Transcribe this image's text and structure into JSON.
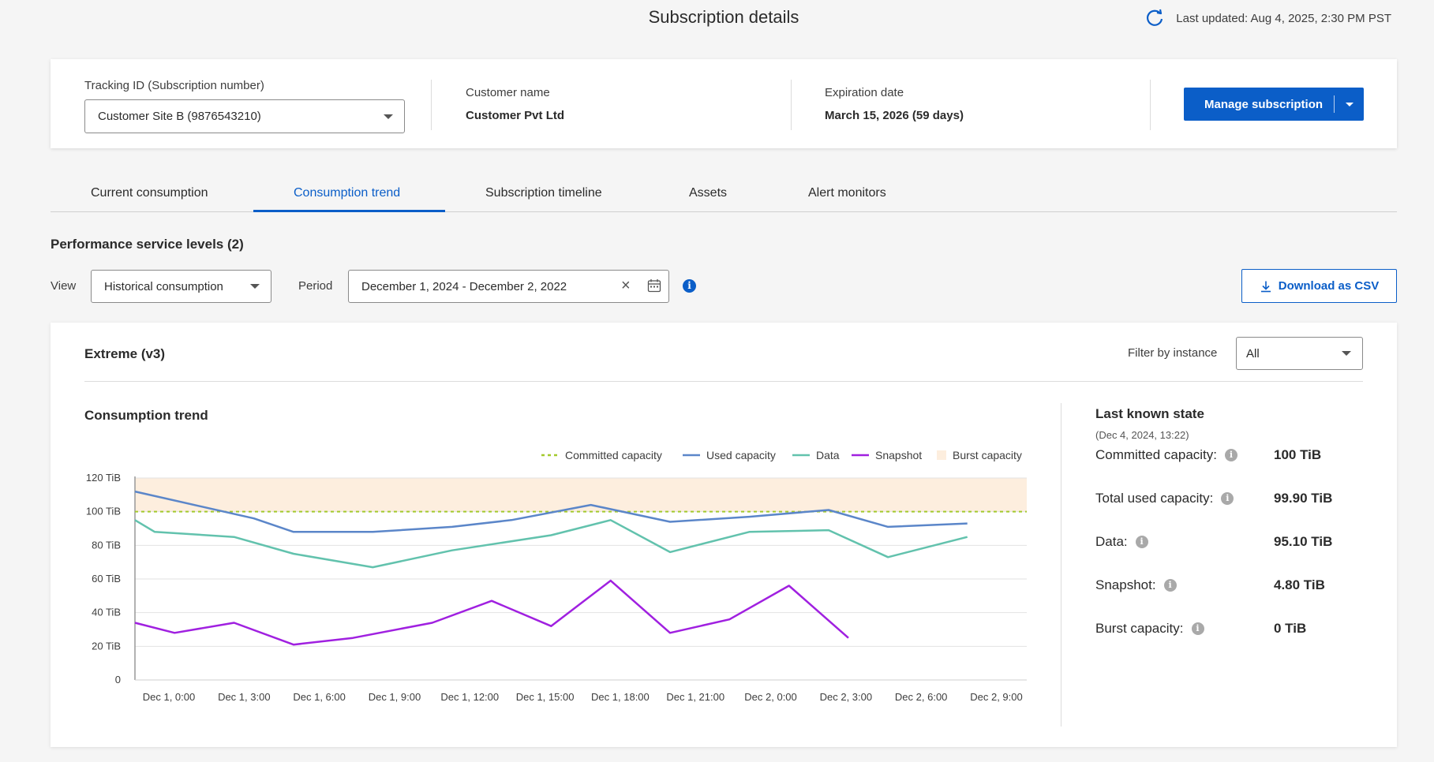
{
  "header": {
    "title": "Subscription details",
    "last_updated": "Last updated: Aug 4, 2025, 2:30 PM PST"
  },
  "subscription": {
    "tracking_label": "Tracking ID (Subscription number)",
    "tracking_value": "Customer Site B (9876543210)",
    "customer_label": "Customer name",
    "customer_value": "Customer Pvt Ltd",
    "expiration_label": "Expiration date",
    "expiration_value": "March 15, 2026 (59 days)",
    "manage_label": "Manage subscription"
  },
  "tabs": [
    {
      "label": "Current consumption"
    },
    {
      "label": "Consumption trend"
    },
    {
      "label": "Subscription timeline"
    },
    {
      "label": "Assets"
    },
    {
      "label": "Alert monitors"
    }
  ],
  "toolbar": {
    "section_title": "Performance service levels (2)",
    "view_label": "View",
    "view_value": "Historical consumption",
    "period_label": "Period",
    "period_value": "December 1, 2024 - December 2, 2022",
    "download_label": "Download as CSV"
  },
  "card": {
    "title": "Extreme (v3)",
    "filter_label": "Filter by instance",
    "filter_value": "All",
    "chart_title": "Consumption trend"
  },
  "state": {
    "title": "Last known state",
    "subtitle": "(Dec 4, 2024, 13:22)",
    "rows": [
      {
        "key": "Committed capacity:",
        "value": "100 TiB"
      },
      {
        "key": "Total used capacity:",
        "value": "99.90 TiB"
      },
      {
        "key": "Data:",
        "value": "95.10 TiB"
      },
      {
        "key": "Snapshot:",
        "value": "4.80 TiB"
      },
      {
        "key": "Burst capacity:",
        "value": "0 TiB"
      }
    ]
  },
  "colors": {
    "accent": "#0b5ec8",
    "committed": "#a3c92c",
    "used": "#5b86c9",
    "data": "#62c2ad",
    "snapshot": "#a020e0",
    "burst": "#fdeede"
  },
  "chart_data": {
    "type": "line",
    "title": "Consumption trend",
    "categories": [
      "Dec 1, 0:00",
      "Dec 1, 3:00",
      "Dec 1, 6:00",
      "Dec 1, 9:00",
      "Dec 1, 12:00",
      "Dec 1, 15:00",
      "Dec 1, 18:00",
      "Dec 1, 21:00",
      "Dec 2, 0:00",
      "Dec 2, 3:00",
      "Dec 2, 6:00",
      "Dec 2, 9:00"
    ],
    "y_ticks": [
      "0",
      "20 TiB",
      "40 TiB",
      "60 TiB",
      "80 TiB",
      "100 TiB",
      "120 TiB"
    ],
    "ylim": [
      0,
      120
    ],
    "legend_position": "top-right",
    "committed_capacity": 100,
    "burst_band": [
      100,
      120
    ],
    "legend": [
      "Committed capacity",
      "Used capacity",
      "Data",
      "Snapshot",
      "Burst capacity"
    ],
    "x": [
      0,
      1.5,
      3,
      4.5,
      6,
      7.5,
      9,
      10.5,
      12,
      13.5,
      15,
      16.5,
      18,
      19.5,
      21,
      22.5,
      24,
      25.5,
      27,
      28.5,
      30,
      31.5,
      33,
      34.5,
      36,
      37.5
    ],
    "series": [
      {
        "name": "Used capacity",
        "points": [
          [
            0,
            112
          ],
          [
            6,
            96
          ],
          [
            8,
            88
          ],
          [
            12,
            88
          ],
          [
            16,
            91
          ],
          [
            19,
            95
          ],
          [
            23,
            104
          ],
          [
            27,
            94
          ],
          [
            31,
            97
          ],
          [
            35,
            101
          ],
          [
            38,
            91
          ],
          [
            42,
            93
          ]
        ]
      },
      {
        "name": "Data",
        "points": [
          [
            0,
            95
          ],
          [
            1,
            88
          ],
          [
            5,
            85
          ],
          [
            8,
            75
          ],
          [
            12,
            67
          ],
          [
            16,
            77
          ],
          [
            21,
            86
          ],
          [
            24,
            95
          ],
          [
            27,
            76
          ],
          [
            31,
            88
          ],
          [
            35,
            89
          ],
          [
            38,
            73
          ],
          [
            42,
            85
          ]
        ]
      },
      {
        "name": "Snapshot",
        "points": [
          [
            0,
            34
          ],
          [
            2,
            28
          ],
          [
            5,
            34
          ],
          [
            8,
            21
          ],
          [
            11,
            25
          ],
          [
            15,
            34
          ],
          [
            18,
            47
          ],
          [
            21,
            32
          ],
          [
            24,
            59
          ],
          [
            27,
            28
          ],
          [
            30,
            36
          ],
          [
            33,
            56
          ],
          [
            36,
            25
          ]
        ]
      }
    ]
  }
}
